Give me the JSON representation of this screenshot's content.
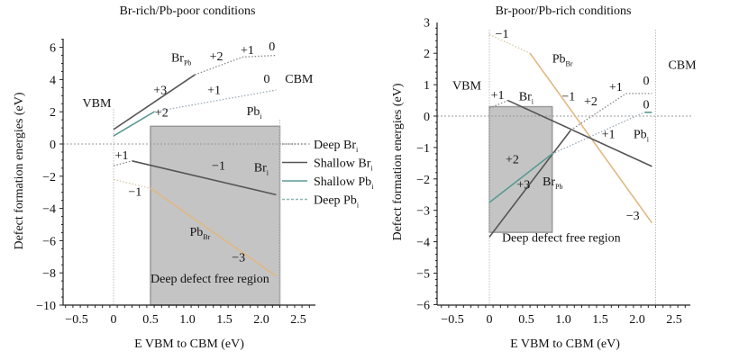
{
  "chart_data": [
    {
      "type": "line",
      "title": "Br-rich/Pb-poor conditions",
      "xlabel": "E VBM to CBM (eV)",
      "ylabel": "Defect formation energies (eV)",
      "xlim": [
        -0.68,
        2.73
      ],
      "ylim": [
        -10,
        7.2
      ],
      "xticks": [
        -0.5,
        0,
        0.5,
        1.0,
        1.5,
        2.0,
        2.5
      ],
      "xtick_labels": [
        "−0.5",
        "0",
        "0.5",
        "1.0",
        "1.5",
        "2.0",
        "2.5"
      ],
      "yticks": [
        -10,
        -8,
        -6,
        -4,
        -2,
        0,
        2,
        4,
        6
      ],
      "ytick_labels": [
        "−10",
        "−8",
        "−6",
        "−4",
        "−2",
        "0",
        "2",
        "4",
        "6"
      ],
      "vlines": [
        {
          "x": 0,
          "label": "VBM"
        },
        {
          "x": 2.25,
          "label": "CBM"
        }
      ],
      "hline": 0,
      "region": {
        "label": "Deep defect free region",
        "x": [
          0.5,
          2.25
        ],
        "y": [
          -10,
          1.1
        ]
      },
      "series": [
        {
          "name": "Br_Pb",
          "style": "shallow-br",
          "solid": [
            [
              0,
              0.9
            ],
            [
              1.1,
              4.3
            ]
          ],
          "dotted": [
            [
              1.1,
              4.3
            ],
            [
              1.75,
              5.4
            ],
            [
              2.2,
              5.5
            ]
          ]
        },
        {
          "name": "Pb_i",
          "style": "shallow-pb",
          "solid": [
            [
              0,
              0.5
            ],
            [
              0.55,
              2.0
            ]
          ],
          "dotted": [
            [
              0.55,
              2.0
            ],
            [
              2.2,
              3.35
            ]
          ]
        },
        {
          "name": "Br_i",
          "style": "shallow-br",
          "solid": [
            [
              0.25,
              -1.05
            ],
            [
              2.2,
              -3.15
            ]
          ],
          "dotted": [
            [
              0,
              -1.35
            ],
            [
              0.25,
              -1.05
            ]
          ]
        },
        {
          "name": "Pb_Br",
          "style": "orange",
          "solid": [
            [
              0.5,
              -2.75
            ],
            [
              2.2,
              -8.2
            ]
          ],
          "dotted": [
            [
              0,
              -2.2
            ],
            [
              0.5,
              -2.75
            ]
          ]
        }
      ],
      "annotations": [
        {
          "text": "VBM",
          "x": -0.42,
          "y": 2.3
        },
        {
          "text": "CBM",
          "x": 2.32,
          "y": 3.8
        },
        {
          "text": "Br",
          "sub": "Pb",
          "x": 0.78,
          "y": 5.1
        },
        {
          "text": "+2",
          "x": 1.3,
          "y": 5.2
        },
        {
          "text": "+1",
          "x": 1.72,
          "y": 5.6
        },
        {
          "text": "0",
          "x": 2.1,
          "y": 5.8
        },
        {
          "text": "0",
          "x": 2.03,
          "y": 3.8
        },
        {
          "text": "+3",
          "x": 0.54,
          "y": 3.1
        },
        {
          "text": "+1",
          "x": 1.27,
          "y": 3.1
        },
        {
          "text": "+2",
          "x": 0.56,
          "y": 1.7
        },
        {
          "text": "Pb",
          "sub": "i",
          "x": 1.8,
          "y": 1.8
        },
        {
          "text": "+1",
          "x": 0.02,
          "y": -0.95
        },
        {
          "text": "−1",
          "x": 1.33,
          "y": -1.6
        },
        {
          "text": "Br",
          "sub": "i",
          "x": 1.9,
          "y": -1.7
        },
        {
          "text": "−1",
          "x": 0.2,
          "y": -3.2
        },
        {
          "text": "Pb",
          "sub": "Br",
          "x": 1.03,
          "y": -5.7
        },
        {
          "text": "−3",
          "x": 1.6,
          "y": -7.3
        },
        {
          "text": "Deep defect free region",
          "x": 0.5,
          "y": -8.6
        }
      ],
      "legend": {
        "placement": "right",
        "entries": [
          {
            "label": "Deep Br",
            "sub": "i",
            "style": "dotted-gray"
          },
          {
            "label": "Shallow Br",
            "sub": "i",
            "style": "solid-gray"
          },
          {
            "label": "Shallow Pb",
            "sub": "i",
            "style": "solid-teal"
          },
          {
            "label": "Deep Pb",
            "sub": "i",
            "style": "dotted-teal"
          }
        ]
      }
    },
    {
      "type": "line",
      "title": "Br-poor/Pb-rich conditions",
      "xlabel": "E VBM to CBM (eV)",
      "ylabel": "Defect formation energies (eV)",
      "xlim": [
        -0.7,
        2.73
      ],
      "ylim": [
        -6,
        3
      ],
      "xticks": [
        -0.5,
        0,
        0.5,
        1.0,
        1.5,
        2.0,
        2.5
      ],
      "xtick_labels": [
        "−0.5",
        "0",
        "0.5",
        "1.0",
        "1.5",
        "2.0",
        "2.5"
      ],
      "yticks": [
        -6,
        -5,
        -4,
        -3,
        -2,
        -1,
        0,
        1,
        2,
        3
      ],
      "ytick_labels": [
        "−6",
        "−5",
        "−4",
        "−3",
        "−2",
        "−1",
        "0",
        "1",
        "2",
        "3"
      ],
      "vlines": [
        {
          "x": 0,
          "label": "VBM"
        },
        {
          "x": 2.25,
          "label": "CBM"
        }
      ],
      "hline": 0,
      "region": {
        "label": "Deep defect free region",
        "x": [
          0,
          0.85
        ],
        "y": [
          -3.7,
          0.3
        ]
      },
      "series": [
        {
          "name": "Pb_Br",
          "style": "orange",
          "solid": [
            [
              0.55,
              2.0
            ],
            [
              2.2,
              -3.4
            ]
          ],
          "dotted": [
            [
              0,
              2.6
            ],
            [
              0.55,
              2.0
            ]
          ]
        },
        {
          "name": "Br_i",
          "style": "shallow-br",
          "solid": [
            [
              0.25,
              0.5
            ],
            [
              2.2,
              -1.6
            ]
          ],
          "dotted": [
            [
              0,
              0.25
            ],
            [
              0.25,
              0.5
            ]
          ]
        },
        {
          "name": "Br_Pb",
          "style": "shallow-br",
          "solid": [
            [
              0,
              -3.85
            ],
            [
              1.1,
              -0.45
            ]
          ],
          "dotted": [
            [
              1.1,
              -0.45
            ],
            [
              1.85,
              0.72
            ],
            [
              2.2,
              0.72
            ]
          ]
        },
        {
          "name": "Pb_i",
          "style": "shallow-pb",
          "solid": [
            [
              0,
              -2.75
            ],
            [
              0.85,
              -1.2
            ]
          ],
          "dotted": [
            [
              0.85,
              -1.2
            ],
            [
              2.1,
              0.12
            ]
          ],
          "tail": [
            [
              2.1,
              0.12
            ],
            [
              2.2,
              0.12
            ]
          ]
        }
      ],
      "annotations": [
        {
          "text": "VBM",
          "x": -0.5,
          "y": 0.85
        },
        {
          "text": "CBM",
          "x": 2.42,
          "y": 1.5
        },
        {
          "text": "−1",
          "x": 0.08,
          "y": 2.5
        },
        {
          "text": "Pb",
          "sub": "Br",
          "x": 0.85,
          "y": 1.7
        },
        {
          "text": "+1",
          "x": 0.02,
          "y": 0.55
        },
        {
          "text": "Br",
          "sub": "i",
          "x": 0.4,
          "y": 0.5
        },
        {
          "text": "−1",
          "x": 0.98,
          "y": 0.5
        },
        {
          "text": "+2",
          "x": 1.28,
          "y": 0.35
        },
        {
          "text": "+1",
          "x": 1.62,
          "y": 0.8
        },
        {
          "text": "0",
          "x": 2.08,
          "y": 1.0
        },
        {
          "text": "0",
          "x": 2.08,
          "y": 0.25
        },
        {
          "text": "+1",
          "x": 1.52,
          "y": -0.7
        },
        {
          "text": "Pb",
          "sub": "i",
          "x": 1.95,
          "y": -0.7
        },
        {
          "text": "+2",
          "x": 0.22,
          "y": -1.5
        },
        {
          "text": "+3",
          "x": 0.37,
          "y": -2.3
        },
        {
          "text": "Br",
          "sub": "Pb",
          "x": 0.72,
          "y": -2.2
        },
        {
          "text": "−3",
          "x": 1.85,
          "y": -3.3
        },
        {
          "text": "Deep defect free region",
          "x": 0.17,
          "y": -4.0
        }
      ]
    }
  ]
}
